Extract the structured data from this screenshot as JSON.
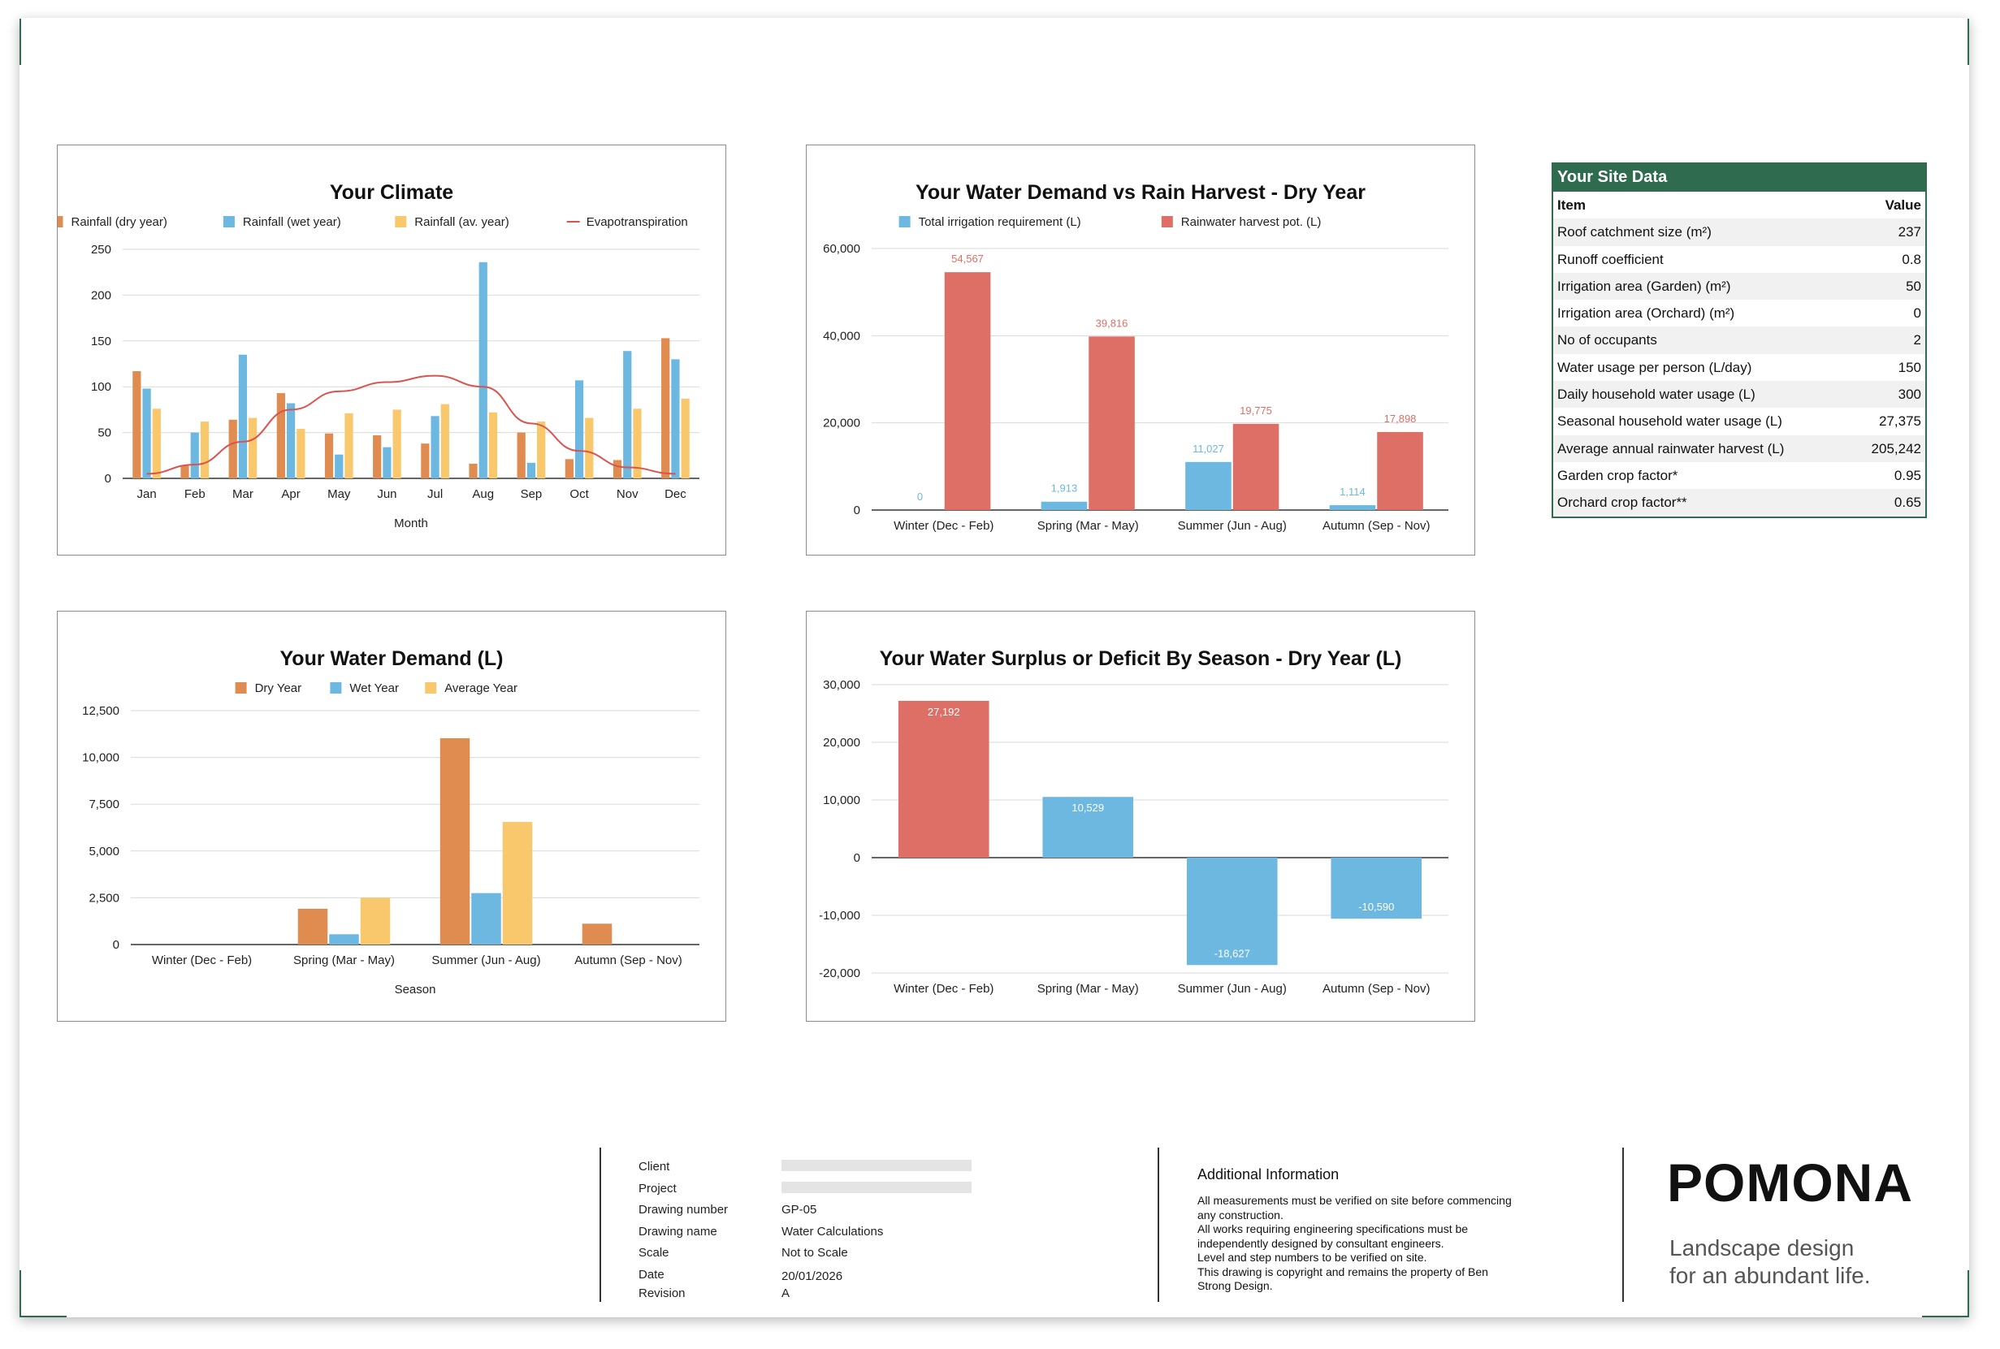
{
  "charts": [
    {
      "id": "climate",
      "type": "bar+line",
      "title": "Your Climate",
      "xlabel": "Month",
      "ylabel": "",
      "ylim": [
        0,
        250
      ],
      "yticks": [
        0,
        50,
        100,
        150,
        200,
        250
      ],
      "categories": [
        "Jan",
        "Feb",
        "Mar",
        "Apr",
        "May",
        "Jun",
        "Jul",
        "Aug",
        "Sep",
        "Oct",
        "Nov",
        "Dec"
      ],
      "series": [
        {
          "name": "Rainfall (dry year)",
          "kind": "bar",
          "color": "#e08c50",
          "values": [
            117,
            14,
            64,
            93,
            49,
            47,
            38,
            16,
            50,
            21,
            20,
            153
          ]
        },
        {
          "name": "Rainfall (wet year)",
          "kind": "bar",
          "color": "#6cb8e0",
          "values": [
            98,
            50,
            135,
            82,
            26,
            34,
            68,
            236,
            17,
            107,
            139,
            130
          ]
        },
        {
          "name": "Rainfall (av. year)",
          "kind": "bar",
          "color": "#fac86c",
          "values": [
            76,
            62,
            66,
            54,
            71,
            75,
            81,
            72,
            62,
            66,
            76,
            87
          ]
        },
        {
          "name": "Evapotranspiration",
          "kind": "line",
          "color": "#d9534f",
          "values": [
            5,
            15,
            40,
            75,
            95,
            105,
            112,
            100,
            60,
            30,
            12,
            5
          ]
        }
      ],
      "legend": "top"
    },
    {
      "id": "demand-vs-harvest",
      "type": "bar",
      "title": "Your Water Demand vs Rain Harvest - Dry Year",
      "xlabel": "",
      "ylabel": "",
      "ylim": [
        0,
        60000
      ],
      "yticks": [
        0,
        20000,
        40000,
        60000
      ],
      "categories": [
        "Winter (Dec - Feb)",
        "Spring (Mar - May)",
        "Summer (Jun - Aug)",
        "Autumn (Sep - Nov)"
      ],
      "series": [
        {
          "name": "Total irrigation requirement (L)",
          "kind": "bar",
          "color": "#6cb8e0",
          "values": [
            0,
            1913,
            11027,
            1114
          ],
          "labels": [
            "0",
            "1,913",
            "11,027",
            "1,114"
          ]
        },
        {
          "name": "Rainwater harvest pot. (L)",
          "kind": "bar",
          "color": "#de6f66",
          "values": [
            54567,
            39816,
            19775,
            17898
          ],
          "labels": [
            "54,567",
            "39,816",
            "19,775",
            "17,898"
          ]
        }
      ],
      "legend": "top"
    },
    {
      "id": "water-demand",
      "type": "bar",
      "title": "Your Water Demand (L)",
      "xlabel": "Season",
      "ylabel": "",
      "ylim": [
        0,
        12500
      ],
      "yticks": [
        0,
        2500,
        5000,
        7500,
        10000,
        12500
      ],
      "categories": [
        "Winter (Dec - Feb)",
        "Spring (Mar - May)",
        "Summer (Jun - Aug)",
        "Autumn (Sep - Nov)"
      ],
      "series": [
        {
          "name": "Dry Year",
          "kind": "bar",
          "color": "#e08c50",
          "values": [
            0,
            1913,
            11027,
            1114
          ]
        },
        {
          "name": "Wet Year",
          "kind": "bar",
          "color": "#6cb8e0",
          "values": [
            0,
            550,
            2750,
            0
          ]
        },
        {
          "name": "Average Year",
          "kind": "bar",
          "color": "#fac86c",
          "values": [
            0,
            2500,
            6550,
            0
          ]
        }
      ],
      "legend": "top"
    },
    {
      "id": "surplus-deficit",
      "type": "bar",
      "title": "Your Water Surplus or Deficit By Season - Dry Year (L)",
      "xlabel": "",
      "ylabel": "",
      "ylim": [
        -20000,
        30000
      ],
      "yticks": [
        -20000,
        -10000,
        0,
        10000,
        20000,
        30000
      ],
      "categories": [
        "Winter (Dec - Feb)",
        "Spring (Mar - May)",
        "Summer (Jun - Aug)",
        "Autumn (Sep - Nov)"
      ],
      "series": [
        {
          "name": "",
          "kind": "bar",
          "colors": [
            "#de6f66",
            "#6cb8e0",
            "#6cb8e0",
            "#6cb8e0"
          ],
          "values": [
            27192,
            10529,
            -18627,
            -10590
          ],
          "labels": [
            "27,192",
            "10,529",
            "-18,627",
            "-10,590"
          ]
        }
      ],
      "legend": "none"
    }
  ],
  "site_data": {
    "title": "Your Site Data",
    "header": {
      "item": "Item",
      "value": "Value"
    },
    "rows": [
      {
        "item": "Roof catchment size (m²)",
        "value": "237"
      },
      {
        "item": "Runoff coefficient",
        "value": "0.8"
      },
      {
        "item": "Irrigation area (Garden) (m²)",
        "value": "50"
      },
      {
        "item": "Irrigation area (Orchard) (m²)",
        "value": "0"
      },
      {
        "item": "No of occupants",
        "value": "2"
      },
      {
        "item": "Water usage per person (L/day)",
        "value": "150"
      },
      {
        "item": "Daily household water usage (L)",
        "value": "300"
      },
      {
        "item": "Seasonal household water usage (L)",
        "value": "27,375"
      },
      {
        "item": "Average annual rainwater harvest (L)",
        "value": "205,242"
      },
      {
        "item": "Garden crop factor*",
        "value": "0.95"
      },
      {
        "item": "Orchard crop factor**",
        "value": "0.65"
      }
    ]
  },
  "title_block": {
    "labels": {
      "client": "Client",
      "project": "Project",
      "drawing_number": "Drawing number",
      "drawing_name": "Drawing name",
      "scale": "Scale",
      "date": "Date",
      "revision": "Revision"
    },
    "values": {
      "drawing_number": "GP-05",
      "drawing_name": "Water Calculations",
      "scale": "Not to Scale",
      "date": "20/01/2026",
      "revision": "A"
    },
    "additional_info_title": "Additional Information",
    "additional_info_lines": [
      "All measurements must be verified on site before commencing",
      "any construction.",
      "All works requiring engineering specifications must be",
      "independently designed by consultant engineers.",
      "Level and step numbers to be verified on site.",
      "This drawing is copyright and remains the property of Ben",
      "Strong Design."
    ],
    "brand": "POMONA",
    "tagline_lines": [
      "Landscape design",
      "for an abundant life."
    ]
  },
  "accent_color": "#2e6b4f"
}
